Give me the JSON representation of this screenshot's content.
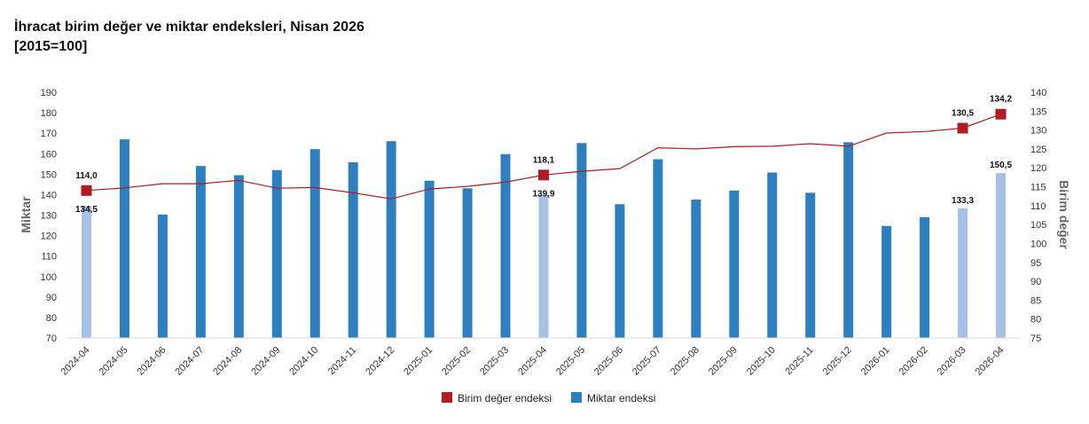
{
  "chart_data": {
    "type": "bar+line",
    "title": "İhracat birim değer ve miktar endeksleri, Nisan 2026",
    "subtitle": "[2015=100]",
    "categories": [
      "2024-04",
      "2024-05",
      "2024-06",
      "2024-07",
      "2024-08",
      "2024-09",
      "2024-10",
      "2024-11",
      "2024-12",
      "2025-01",
      "2025-02",
      "2025-03",
      "2025-04",
      "2025-05",
      "2025-06",
      "2025-07",
      "2025-08",
      "2025-09",
      "2025-10",
      "2025-11",
      "2025-12",
      "2026-01",
      "2026-02",
      "2026-03",
      "2026-04"
    ],
    "y_left": {
      "label": "Miktar",
      "min": 70,
      "max": 190,
      "step": 10
    },
    "y_right": {
      "label": "Birim değer",
      "min": 75,
      "max": 140,
      "step": 5
    },
    "series": [
      {
        "name": "Miktar endeksi",
        "kind": "bar",
        "axis": "left",
        "color": "#2e7fc0",
        "highlight_color": "#a6c0e6",
        "highlight_indices": [
          0,
          12,
          23,
          24
        ],
        "values": [
          134.5,
          167.0,
          130.2,
          154.0,
          149.5,
          152.0,
          162.2,
          155.8,
          166.1,
          146.8,
          143.1,
          159.8,
          139.9,
          165.2,
          135.3,
          157.3,
          137.6,
          142.0,
          150.8,
          140.9,
          165.6,
          124.7,
          129.0,
          133.3,
          150.5
        ],
        "labels": [
          {
            "index": 0,
            "text": "134,5"
          },
          {
            "index": 12,
            "text": "139,9"
          },
          {
            "index": 23,
            "text": "133,3"
          },
          {
            "index": 24,
            "text": "150,5"
          }
        ]
      },
      {
        "name": "Birim değer endeksi",
        "kind": "line",
        "axis": "right",
        "color": "#b01c22",
        "marker_indices": [
          0,
          12,
          23,
          24
        ],
        "values": [
          114.0,
          114.7,
          115.8,
          115.8,
          116.7,
          114.6,
          114.8,
          113.4,
          111.8,
          114.4,
          115.1,
          116.2,
          118.1,
          119.1,
          119.8,
          125.3,
          125.0,
          125.6,
          125.7,
          126.4,
          125.7,
          129.2,
          129.6,
          130.5,
          134.2
        ],
        "labels": [
          {
            "index": 0,
            "text": "114,0"
          },
          {
            "index": 12,
            "text": "118,1"
          },
          {
            "index": 23,
            "text": "130,5"
          },
          {
            "index": 24,
            "text": "134,2"
          }
        ]
      }
    ],
    "legend": {
      "position": "bottom-center",
      "items": [
        {
          "name": "Birim değer endeksi",
          "color": "#b01c22"
        },
        {
          "name": "Miktar endeksi",
          "color": "#2e7fc0"
        }
      ]
    },
    "grid": false
  }
}
